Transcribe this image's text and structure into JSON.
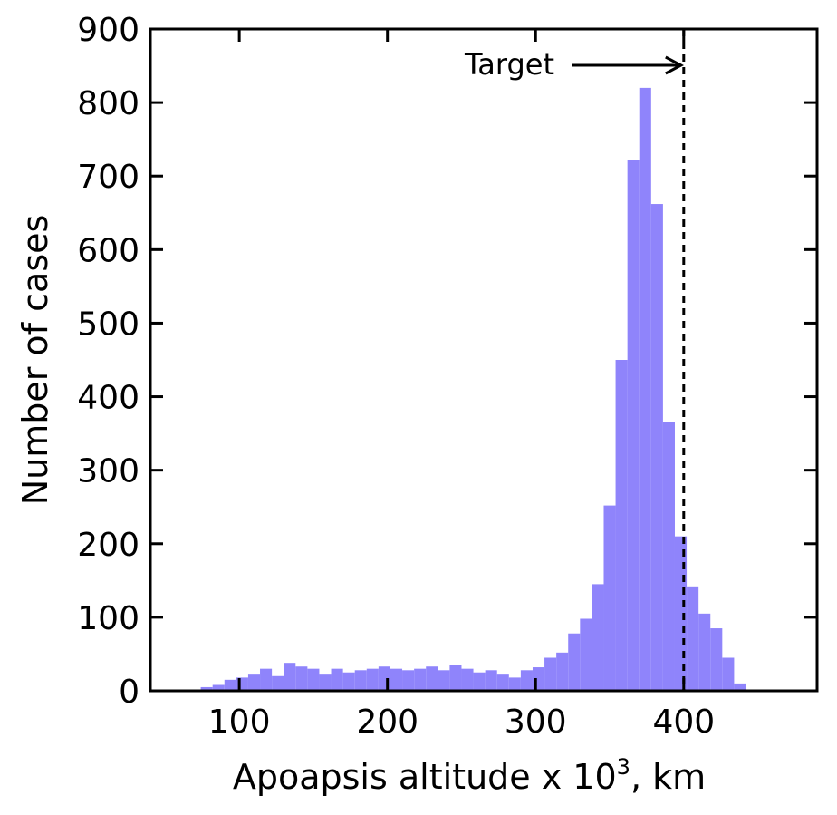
{
  "chart_data": {
    "type": "bar",
    "title": "",
    "xlabel": "Apoapsis altitude x 10",
    "xlabel_superscript": "3",
    "xlabel_suffix": ", km",
    "ylabel": "Number of cases",
    "xlim": [
      40,
      490
    ],
    "ylim": [
      0,
      900
    ],
    "xticks": [
      100,
      200,
      300,
      400
    ],
    "yticks": [
      0,
      100,
      200,
      300,
      400,
      500,
      600,
      700,
      800,
      900
    ],
    "bin_width": 8,
    "bin_starts": [
      74,
      82,
      90,
      98,
      106,
      114,
      122,
      130,
      138,
      146,
      154,
      162,
      170,
      178,
      186,
      194,
      202,
      210,
      218,
      226,
      234,
      242,
      250,
      258,
      266,
      274,
      282,
      290,
      298,
      306,
      314,
      322,
      330,
      338,
      346,
      354,
      362,
      370,
      378,
      386,
      394,
      402,
      410,
      418,
      426,
      434,
      442
    ],
    "values": [
      5,
      8,
      15,
      18,
      22,
      30,
      20,
      38,
      33,
      30,
      22,
      30,
      25,
      28,
      30,
      33,
      30,
      28,
      30,
      33,
      28,
      35,
      30,
      25,
      28,
      22,
      18,
      28,
      32,
      45,
      52,
      78,
      98,
      145,
      252,
      450,
      722,
      820,
      662,
      365,
      210,
      142,
      105,
      85,
      45,
      10,
      0
    ],
    "bar_color": "#8f84fb",
    "grid": false,
    "annotations": [
      {
        "type": "vline",
        "x": 400,
        "style": "dashed",
        "label": "Target",
        "arrow": "right"
      }
    ]
  }
}
